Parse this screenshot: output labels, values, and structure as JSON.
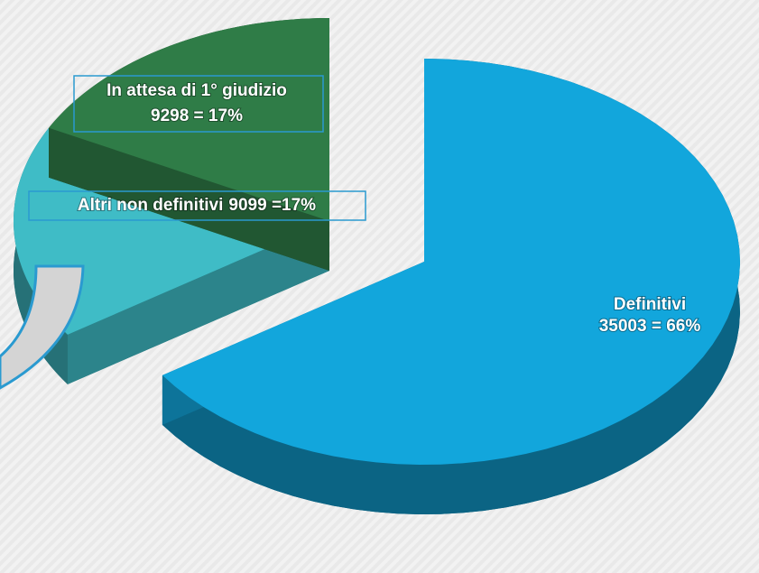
{
  "chart_data": {
    "type": "pie",
    "categories": [
      "Definitivi",
      "Altri non definitivi",
      "In attesa di 1° giudizio"
    ],
    "values": [
      35003,
      9099,
      9298
    ],
    "value_labels": [
      "35003 = 66%",
      "9099 =17%",
      "9298 = 17%"
    ],
    "colors": [
      "#12a6dc",
      "#3fbcc6",
      "#2f7c47"
    ]
  }
}
